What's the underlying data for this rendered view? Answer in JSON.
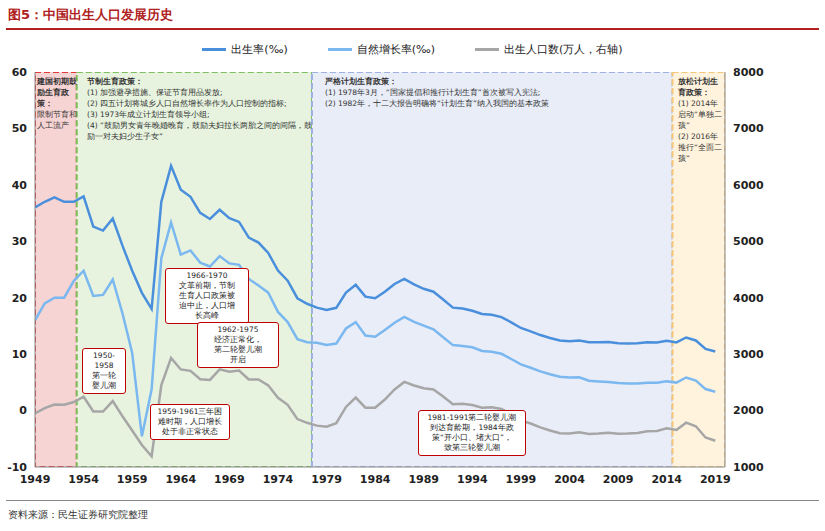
{
  "chart_data": {
    "type": "line",
    "title": "图5：中国出生人口发展历史",
    "source": "资料来源：民生证券研究院整理",
    "x": [
      1949,
      1950,
      1951,
      1952,
      1953,
      1954,
      1955,
      1956,
      1957,
      1958,
      1959,
      1960,
      1961,
      1962,
      1963,
      1964,
      1965,
      1966,
      1967,
      1968,
      1969,
      1970,
      1971,
      1972,
      1973,
      1974,
      1975,
      1976,
      1977,
      1978,
      1979,
      1980,
      1981,
      1982,
      1983,
      1984,
      1985,
      1986,
      1987,
      1988,
      1989,
      1990,
      1991,
      1992,
      1993,
      1994,
      1995,
      1996,
      1997,
      1998,
      1999,
      2000,
      2001,
      2002,
      2003,
      2004,
      2005,
      2006,
      2007,
      2008,
      2009,
      2010,
      2011,
      2012,
      2013,
      2014,
      2015,
      2016,
      2017,
      2018,
      2019
    ],
    "series": [
      {
        "name": "出生率(‰)",
        "color": "#4a8fdc",
        "values": [
          36.0,
          37.0,
          37.8,
          37.0,
          37.0,
          37.97,
          32.6,
          31.9,
          34.03,
          29.22,
          24.78,
          20.86,
          18.02,
          37.01,
          43.37,
          39.14,
          37.88,
          35.05,
          33.96,
          35.59,
          34.11,
          33.43,
          30.65,
          29.77,
          27.93,
          24.82,
          23.01,
          19.91,
          18.93,
          18.25,
          17.82,
          18.21,
          20.91,
          22.28,
          20.19,
          19.9,
          21.04,
          22.43,
          23.33,
          22.37,
          21.58,
          21.06,
          19.68,
          18.24,
          18.09,
          17.7,
          17.12,
          16.98,
          16.57,
          15.64,
          14.64,
          14.03,
          13.38,
          12.86,
          12.41,
          12.29,
          12.4,
          12.09,
          12.1,
          12.14,
          11.95,
          11.9,
          11.93,
          12.1,
          12.08,
          12.37,
          12.07,
          12.95,
          12.43,
          10.94,
          10.48
        ]
      },
      {
        "name": "自然增长率(‰)",
        "color": "#7ab8ef",
        "values": [
          16.0,
          19.0,
          20.0,
          20.0,
          23.0,
          24.79,
          20.32,
          20.5,
          23.23,
          17.24,
          10.19,
          -4.57,
          3.78,
          26.99,
          33.33,
          27.64,
          28.38,
          26.22,
          25.53,
          27.38,
          26.08,
          25.83,
          23.33,
          22.16,
          20.89,
          17.48,
          15.69,
          12.66,
          12.12,
          12.0,
          11.61,
          11.87,
          14.55,
          15.68,
          13.29,
          13.08,
          14.26,
          15.57,
          16.61,
          15.73,
          15.04,
          14.39,
          12.98,
          11.6,
          11.45,
          11.21,
          10.55,
          10.42,
          10.06,
          9.14,
          8.18,
          7.58,
          6.95,
          6.45,
          6.01,
          5.87,
          5.89,
          5.28,
          5.17,
          5.08,
          4.87,
          4.79,
          4.79,
          4.95,
          4.92,
          5.21,
          4.96,
          5.86,
          5.32,
          3.81,
          3.34
        ]
      },
      {
        "name": "出生人口数(万人，右轴)",
        "color": "#a6a6a6",
        "axis": "y2",
        "values": [
          1950,
          2042,
          2107,
          2105,
          2151,
          2245,
          1984,
          1983,
          2169,
          1900,
          1647,
          1389,
          1188,
          2451,
          2934,
          2729,
          2704,
          2554,
          2543,
          2731,
          2690,
          2710,
          2551,
          2550,
          2447,
          2226,
          2102,
          1849,
          1783,
          1733,
          1715,
          1776,
          2064,
          2230,
          2052,
          2050,
          2196,
          2374,
          2508,
          2445,
          2396,
          2374,
          2250,
          2113,
          2120,
          2098,
          2052,
          2057,
          2028,
          1934,
          1827,
          1771,
          1702,
          1647,
          1599,
          1593,
          1617,
          1584,
          1594,
          1608,
          1591,
          1592,
          1604,
          1635,
          1640,
          1687,
          1655,
          1786,
          1723,
          1523,
          1465
        ]
      }
    ],
    "xlim": [
      1949,
      2020
    ],
    "xticks": [
      1949,
      1954,
      1959,
      1964,
      1969,
      1974,
      1979,
      1984,
      1989,
      1994,
      1999,
      2004,
      2009,
      2014,
      2019
    ],
    "ylim": [
      -10,
      60
    ],
    "yticks": [
      -10,
      0,
      10,
      20,
      30,
      40,
      50,
      60
    ],
    "y2lim": [
      1000,
      8000
    ],
    "y2ticks": [
      1000,
      2000,
      3000,
      4000,
      5000,
      6000,
      7000,
      8000
    ],
    "grid": false,
    "periods": [
      {
        "start": 1949,
        "end": 1953.3,
        "color": "#e03a3a",
        "title": "建国初期鼓励生育政策：",
        "lines": [
          "限制节育和人工流产"
        ]
      },
      {
        "start": 1953.3,
        "end": 1977.5,
        "color": "#7fbf5f",
        "title": "节制生育政策：",
        "lines": [
          "(1) 加强避孕措施、保证节育用品发放;",
          "(2) 四五计划将城乡人口自然增长率作为人口控制的指标;",
          "(3) 1973年成立计划生育领导小组;",
          "(4) “鼓励男女青年晚婚晚育，鼓励夫妇拉长两胎之间的间隔，鼓励一对夫妇少生子女”"
        ]
      },
      {
        "start": 1977.5,
        "end": 2014.6,
        "color": "#9fb1e2",
        "title": "严格计划生育政策：",
        "lines": [
          "(1) 1978年3月，“国家提倡和推行计划生育”首次被写入宪法;",
          "(2) 1982年，十二大报告明确将“计划生育”纳入我国的基本政策"
        ]
      },
      {
        "start": 2014.6,
        "end": 2020,
        "color": "#f5c77a",
        "title": "放松计划生育政策：",
        "lines": [
          "(1) 2014年启动“单独二孩”",
          "(2) 2016年推行“全面二孩”"
        ]
      }
    ],
    "annotations": [
      {
        "lines": [
          "1966-1970",
          "文革前期，节制",
          "生育人口政策被",
          "迫中止，人口增",
          "长高峰"
        ]
      },
      {
        "lines": [
          "1962-1975",
          "经济正常化，",
          "第二轮婴儿潮",
          "开启"
        ]
      },
      {
        "lines": [
          "1950-",
          "1958",
          "第一轮",
          "婴儿潮"
        ]
      },
      {
        "lines": [
          "1959-1961三年困",
          "难时期，人口增长",
          "处于非正常状态"
        ]
      },
      {
        "lines": [
          "1981-1991第二轮婴儿潮",
          "到达育龄期，1984年政",
          "策“开小口、堵大口”，",
          "致第三轮婴儿潮"
        ]
      }
    ]
  }
}
